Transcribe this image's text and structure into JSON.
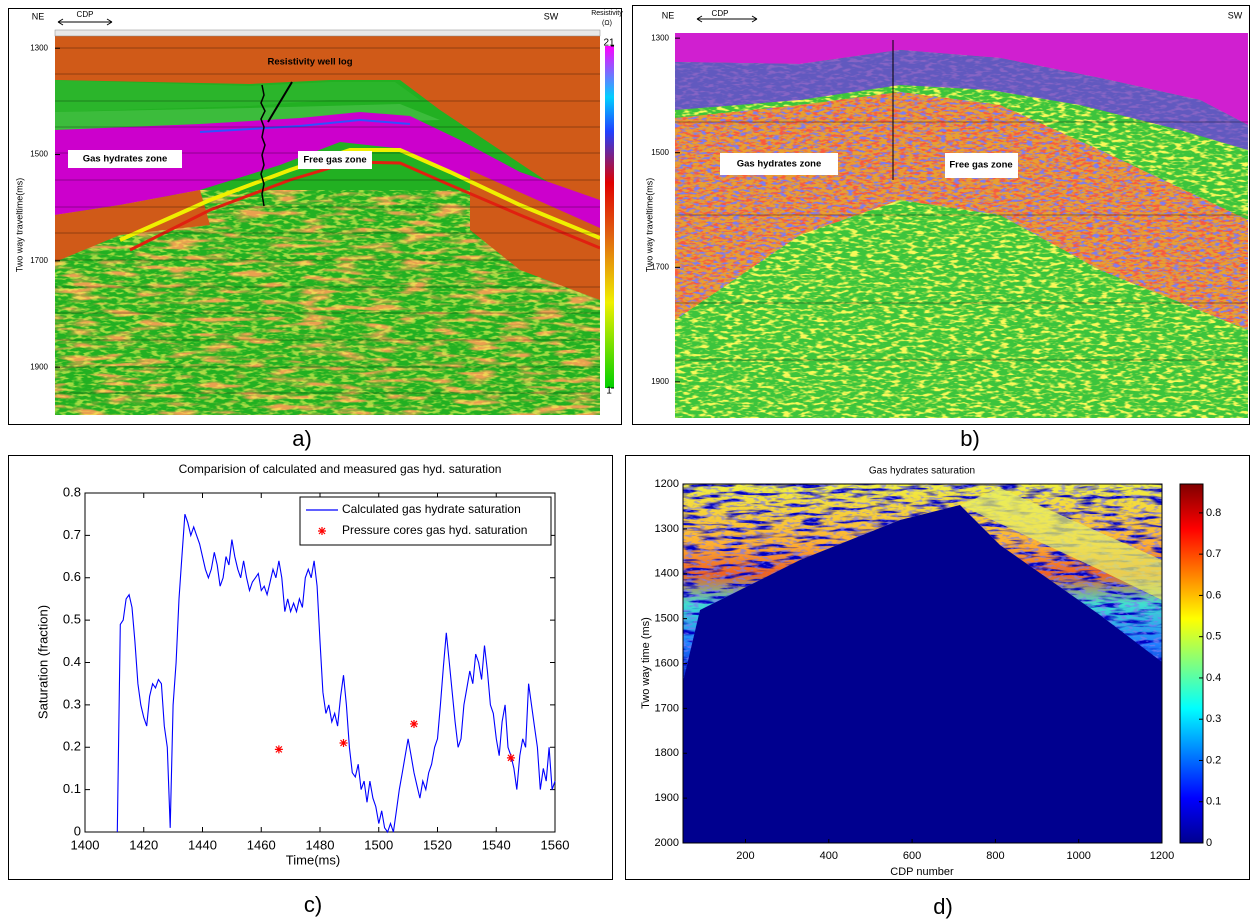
{
  "chart_data": [
    {
      "type": "seismic",
      "panel_label": "a)",
      "ylabel": "Two way traveltime(ms)",
      "ylim": [
        1277,
        1990
      ],
      "y_reversed": true,
      "yticks": [
        1300,
        1500,
        1700,
        1900
      ],
      "direction_labels": [
        "NE",
        "SW"
      ],
      "cdp_label": "CDP",
      "colorbar_label": [
        "Resistivity",
        "(Ω)"
      ],
      "clim": [
        1,
        21
      ],
      "cticks": [
        1,
        21
      ],
      "annotations": [
        "Resistivity well log",
        "Gas hydrates zone",
        "Free gas zone"
      ]
    },
    {
      "type": "seismic",
      "panel_label": "b)",
      "ylabel": "Two way traveltime(ms)",
      "ylim": [
        1291,
        1963
      ],
      "y_reversed": true,
      "yticks": [
        1300,
        1500,
        1700,
        1900
      ],
      "direction_labels": [
        "NE",
        "SW"
      ],
      "cdp_label": "CDP",
      "annotations": [
        "Gas hydrates zone",
        "Free gas zone"
      ]
    },
    {
      "type": "line",
      "panel_label": "c)",
      "title": "Comparision of calculated and measured gas hyd. saturation",
      "xlabel": "Time(ms)",
      "ylabel": "Saturation (fraction)",
      "xlim": [
        1400,
        1560
      ],
      "ylim": [
        0,
        0.8
      ],
      "xticks": [
        1400,
        1420,
        1440,
        1460,
        1480,
        1500,
        1520,
        1540,
        1560
      ],
      "yticks": [
        0,
        0.1,
        0.2,
        0.3,
        0.4,
        0.5,
        0.6,
        0.7,
        0.8
      ],
      "legend": "upper right",
      "x": [
        1411,
        1412,
        1413,
        1414,
        1415,
        1416,
        1417,
        1418,
        1419,
        1420,
        1421,
        1422,
        1423,
        1424,
        1425,
        1426,
        1427,
        1428,
        1429,
        1430,
        1431,
        1432,
        1433,
        1434,
        1435,
        1436,
        1437,
        1438,
        1439,
        1440,
        1441,
        1442,
        1443,
        1444,
        1445,
        1446,
        1447,
        1448,
        1449,
        1450,
        1451,
        1452,
        1453,
        1454,
        1455,
        1456,
        1457,
        1458,
        1459,
        1460,
        1461,
        1462,
        1463,
        1464,
        1465,
        1466,
        1467,
        1468,
        1469,
        1470,
        1471,
        1472,
        1473,
        1474,
        1475,
        1476,
        1477,
        1478,
        1479,
        1480,
        1481,
        1482,
        1483,
        1484,
        1485,
        1486,
        1487,
        1488,
        1489,
        1490,
        1491,
        1492,
        1493,
        1494,
        1495,
        1496,
        1497,
        1498,
        1499,
        1500,
        1501,
        1502,
        1503,
        1504,
        1505,
        1506,
        1507,
        1508,
        1509,
        1510,
        1511,
        1512,
        1513,
        1514,
        1515,
        1516,
        1517,
        1518,
        1519,
        1520,
        1521,
        1522,
        1523,
        1524,
        1525,
        1526,
        1527,
        1528,
        1529,
        1530,
        1531,
        1532,
        1533,
        1534,
        1535,
        1536,
        1537,
        1538,
        1539,
        1540,
        1541,
        1542,
        1543,
        1544,
        1545,
        1546,
        1547,
        1548,
        1549,
        1550,
        1551,
        1552,
        1553,
        1554,
        1555,
        1556,
        1557,
        1558,
        1559,
        1560
      ],
      "series": [
        {
          "name": "Calculated gas hydrate saturation",
          "color": "#0000ff",
          "values": [
            0,
            0.49,
            0.5,
            0.55,
            0.56,
            0.53,
            0.45,
            0.35,
            0.3,
            0.27,
            0.25,
            0.32,
            0.35,
            0.34,
            0.36,
            0.35,
            0.25,
            0.2,
            0.01,
            0.3,
            0.4,
            0.55,
            0.65,
            0.75,
            0.73,
            0.7,
            0.72,
            0.7,
            0.68,
            0.65,
            0.62,
            0.6,
            0.62,
            0.66,
            0.63,
            0.58,
            0.6,
            0.65,
            0.63,
            0.69,
            0.65,
            0.62,
            0.6,
            0.64,
            0.6,
            0.57,
            0.59,
            0.6,
            0.61,
            0.57,
            0.58,
            0.56,
            0.59,
            0.62,
            0.6,
            0.64,
            0.6,
            0.52,
            0.55,
            0.52,
            0.54,
            0.52,
            0.55,
            0.53,
            0.6,
            0.62,
            0.6,
            0.64,
            0.58,
            0.45,
            0.33,
            0.28,
            0.3,
            0.26,
            0.28,
            0.25,
            0.32,
            0.37,
            0.3,
            0.2,
            0.14,
            0.13,
            0.16,
            0.1,
            0.12,
            0.07,
            0.12,
            0.08,
            0.06,
            0.02,
            0.05,
            0.01,
            0,
            0.02,
            0,
            0.05,
            0.1,
            0.14,
            0.18,
            0.22,
            0.18,
            0.14,
            0.11,
            0.08,
            0.12,
            0.1,
            0.14,
            0.16,
            0.2,
            0.22,
            0.3,
            0.39,
            0.47,
            0.4,
            0.33,
            0.26,
            0.2,
            0.22,
            0.3,
            0.34,
            0.38,
            0.35,
            0.42,
            0.4,
            0.36,
            0.44,
            0.38,
            0.3,
            0.28,
            0.22,
            0.18,
            0.26,
            0.3,
            0.2,
            0.18,
            0.15,
            0.1,
            0.18,
            0.22,
            0.2,
            0.35,
            0.3,
            0.25,
            0.2,
            0.1,
            0.15,
            0.12,
            0.2,
            0.1,
            0.12
          ]
        },
        {
          "name": "Pressure cores gas hyd. saturation",
          "color": "#ff0000",
          "marker": "*",
          "x": [
            1466,
            1488,
            1512,
            1545
          ],
          "values": [
            0.195,
            0.21,
            0.255,
            0.175
          ]
        }
      ]
    },
    {
      "type": "heatmap",
      "panel_label": "d)",
      "title": "Gas hydrates saturation",
      "xlabel": "CDP number",
      "ylabel": "Two way time (ms)",
      "xlim": [
        50,
        1200
      ],
      "ylim": [
        1200,
        2000
      ],
      "y_reversed": true,
      "xticks": [
        200,
        400,
        600,
        800,
        1000,
        1200
      ],
      "yticks": [
        1200,
        1300,
        1400,
        1500,
        1600,
        1700,
        1800,
        1900,
        2000
      ],
      "clim": [
        0,
        0.87
      ],
      "cticks": [
        0,
        0.1,
        0.2,
        0.3,
        0.4,
        0.5,
        0.6,
        0.7,
        0.8
      ],
      "colormap": "jet"
    }
  ]
}
